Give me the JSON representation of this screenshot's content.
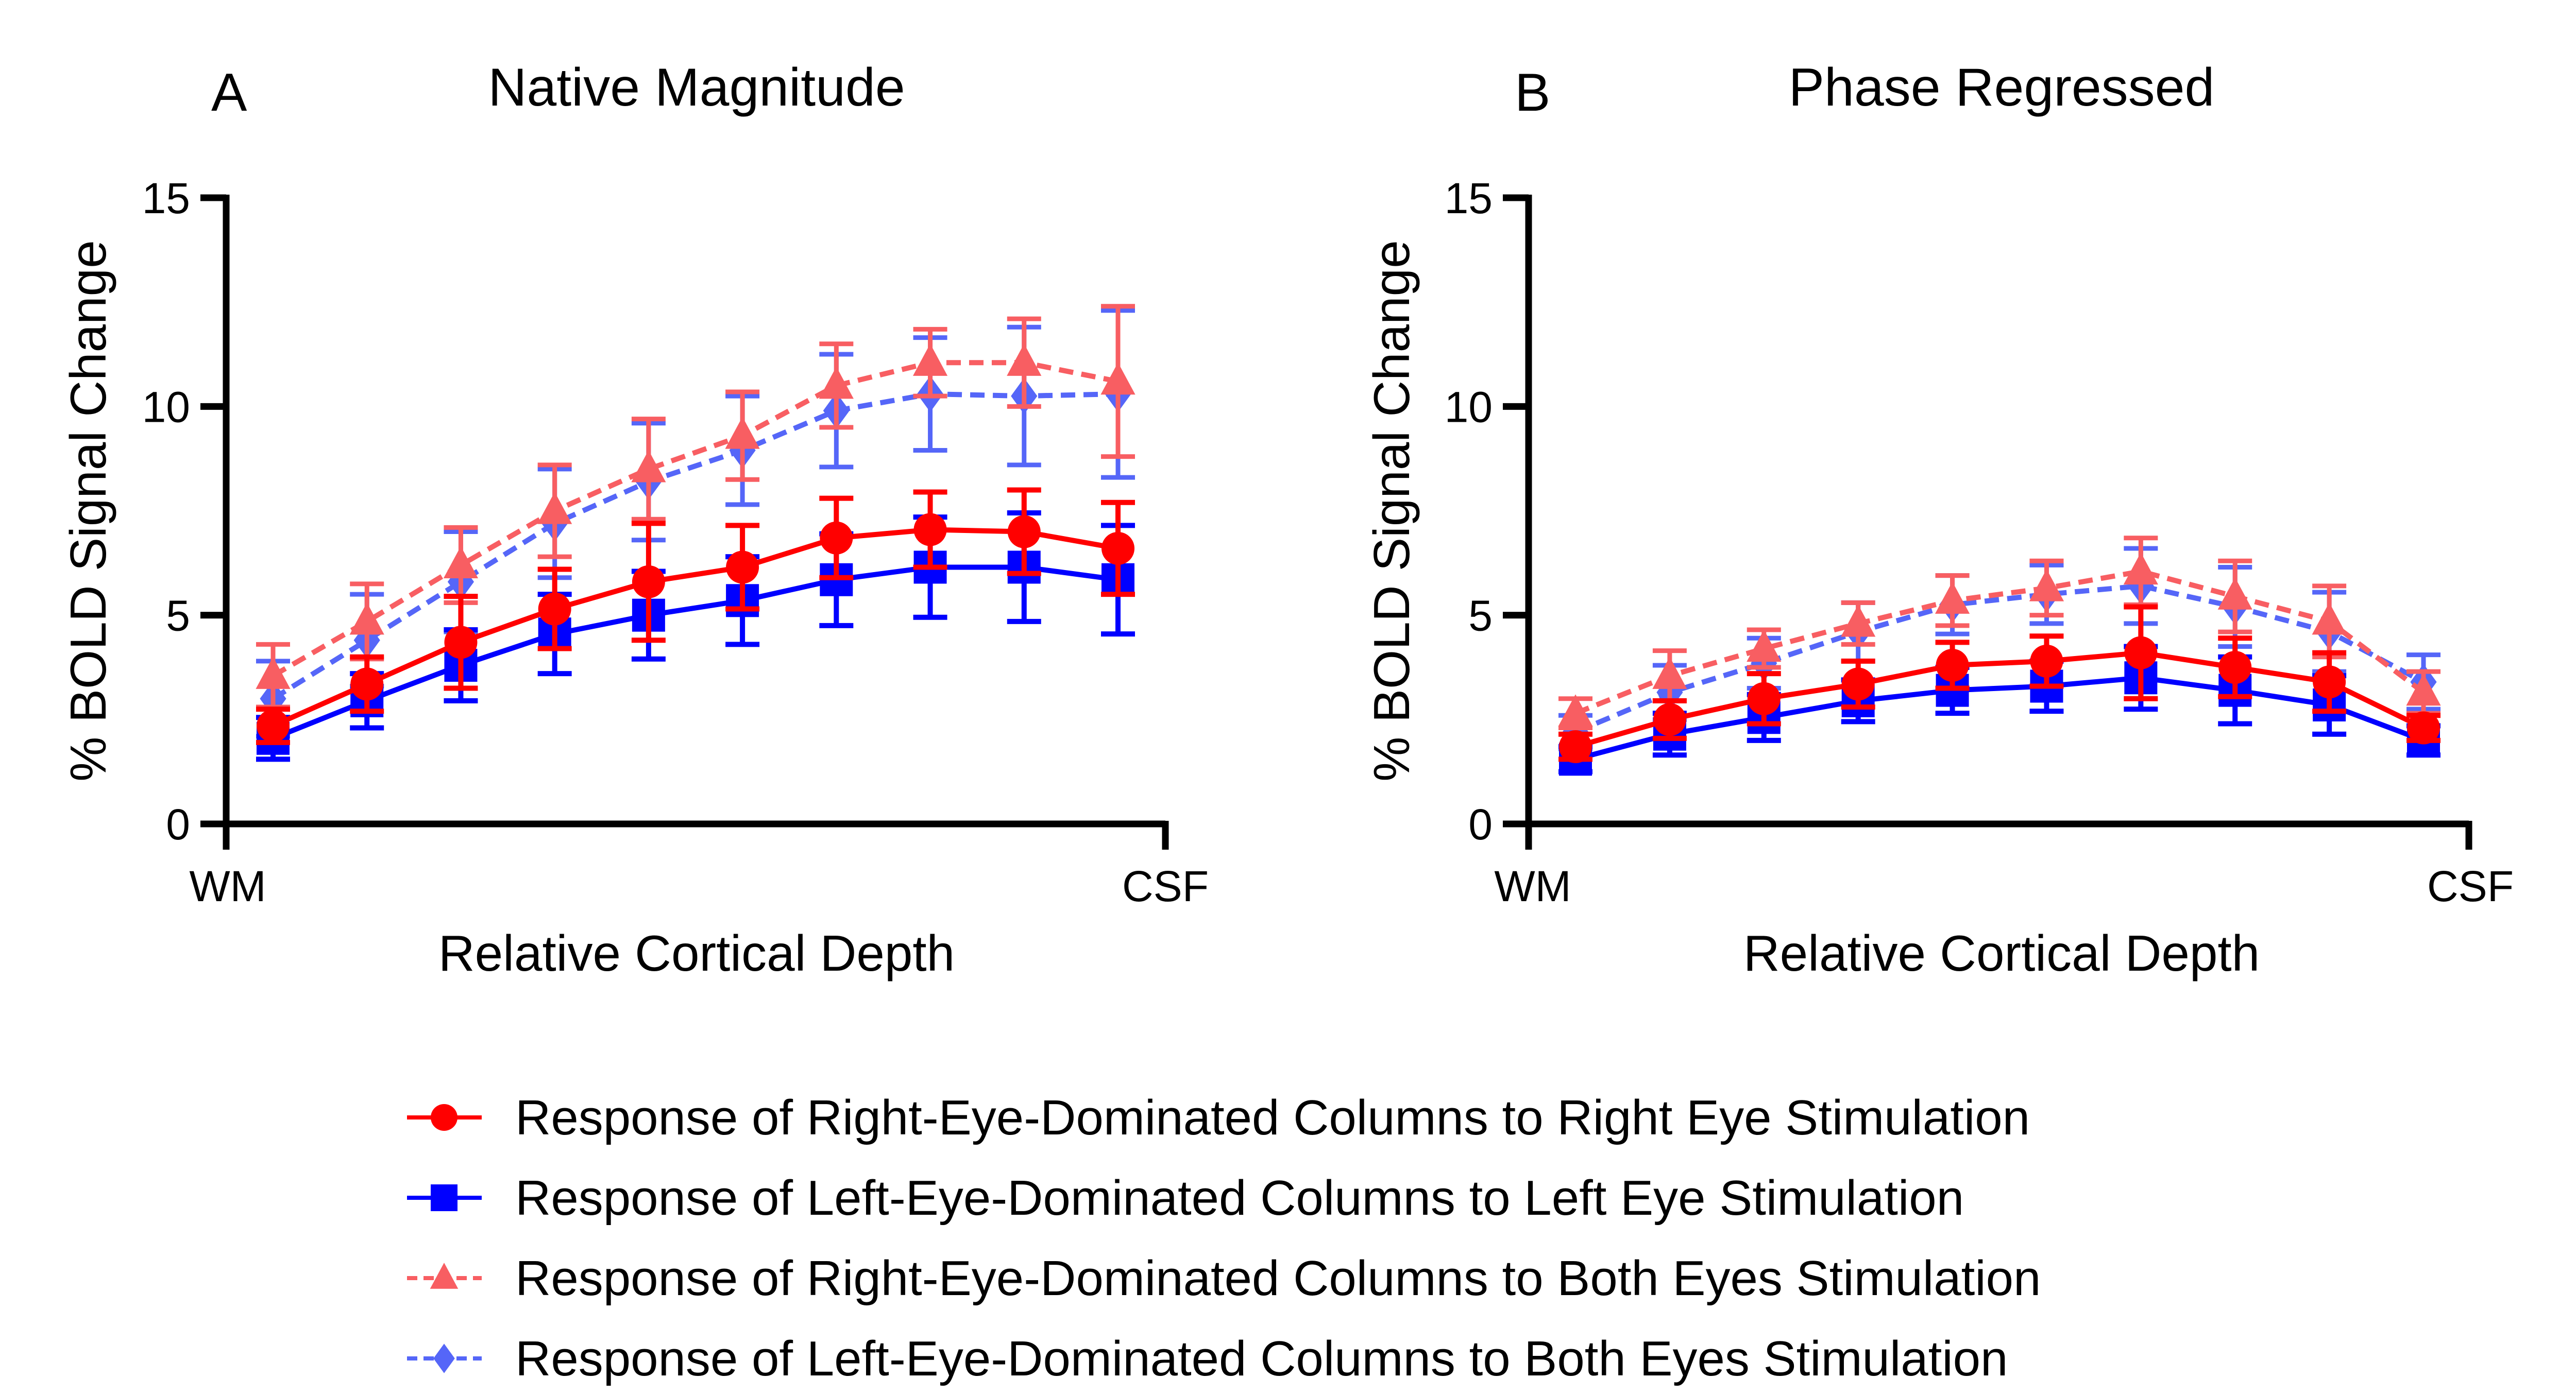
{
  "chart_data": [
    {
      "type": "line",
      "panel_letter": "A",
      "title": "Native Magnitude",
      "xlabel": "Relative Cortical Depth",
      "ylabel": "% BOLD Signal Change",
      "x_tick_labels": [
        "WM",
        "CSF"
      ],
      "yticks": [
        0,
        5,
        10,
        15
      ],
      "ylim": [
        0,
        15
      ],
      "x": [
        1,
        2,
        3,
        4,
        5,
        6,
        7,
        8,
        9,
        10
      ],
      "series": [
        {
          "name": "Response of Right-Eye-Dominated Columns to Right Eye Stimulation",
          "values": [
            2.35,
            3.35,
            4.35,
            5.15,
            5.8,
            6.15,
            6.85,
            7.05,
            7.0,
            6.6
          ],
          "errors": [
            0.4,
            0.65,
            1.1,
            0.95,
            1.4,
            1.0,
            0.95,
            0.9,
            1.0,
            1.1
          ]
        },
        {
          "name": "Response of Left-Eye-Dominated Columns to Left Eye Stimulation",
          "values": [
            2.05,
            2.95,
            3.8,
            4.55,
            5.0,
            5.35,
            5.85,
            6.15,
            6.15,
            5.85
          ],
          "errors": [
            0.5,
            0.65,
            0.85,
            0.95,
            1.05,
            1.05,
            1.1,
            1.2,
            1.3,
            1.3
          ]
        },
        {
          "name": "Response of Right-Eye-Dominated Columns to Both Eyes Stimulation",
          "values": [
            3.55,
            4.85,
            6.2,
            7.5,
            8.5,
            9.3,
            10.5,
            11.05,
            11.05,
            10.6
          ],
          "errors": [
            0.75,
            0.9,
            0.9,
            1.1,
            1.2,
            1.05,
            1.0,
            0.8,
            1.05,
            1.8
          ]
        },
        {
          "name": "Response of Left-Eye-Dominated Columns to Both Eyes Stimulation",
          "values": [
            3.0,
            4.4,
            5.8,
            7.2,
            8.2,
            8.95,
            9.9,
            10.3,
            10.25,
            10.3
          ],
          "errors": [
            0.9,
            1.1,
            1.2,
            1.3,
            1.4,
            1.3,
            1.35,
            1.35,
            1.65,
            2.0
          ]
        }
      ]
    },
    {
      "type": "line",
      "panel_letter": "B",
      "title": "Phase Regressed",
      "xlabel": "Relative Cortical Depth",
      "ylabel": "% BOLD Signal Change",
      "x_tick_labels": [
        "WM",
        "CSF"
      ],
      "yticks": [
        0,
        5,
        10,
        15
      ],
      "ylim": [
        0,
        15
      ],
      "x": [
        1,
        2,
        3,
        4,
        5,
        6,
        7,
        8,
        9,
        10
      ],
      "series": [
        {
          "name": "Response of Right-Eye-Dominated Columns to Right Eye Stimulation",
          "values": [
            1.85,
            2.5,
            3.0,
            3.35,
            3.8,
            3.9,
            4.1,
            3.75,
            3.4,
            2.3
          ],
          "errors": [
            0.3,
            0.45,
            0.6,
            0.55,
            0.55,
            0.6,
            1.1,
            0.7,
            0.7,
            0.3
          ]
        },
        {
          "name": "Response of Left-Eye-Dominated Columns to Left Eye Stimulation",
          "values": [
            1.55,
            2.15,
            2.55,
            2.95,
            3.2,
            3.3,
            3.5,
            3.2,
            2.85,
            2.0
          ],
          "errors": [
            0.3,
            0.5,
            0.55,
            0.5,
            0.55,
            0.6,
            0.75,
            0.8,
            0.7,
            0.35
          ]
        },
        {
          "name": "Response of Right-Eye-Dominated Columns to Both Eyes Stimulation",
          "values": [
            2.65,
            3.55,
            4.2,
            4.8,
            5.35,
            5.65,
            6.05,
            5.45,
            4.85,
            3.15
          ],
          "errors": [
            0.35,
            0.6,
            0.45,
            0.5,
            0.6,
            0.65,
            0.8,
            0.85,
            0.85,
            0.5
          ]
        },
        {
          "name": "Response of Left-Eye-Dominated Columns to Both Eyes Stimulation",
          "values": [
            2.2,
            3.15,
            3.85,
            4.6,
            5.25,
            5.5,
            5.7,
            5.2,
            4.6,
            3.4
          ],
          "errors": [
            0.4,
            0.65,
            0.6,
            0.7,
            0.7,
            0.7,
            0.9,
            0.95,
            0.95,
            0.65
          ]
        }
      ]
    }
  ],
  "legend": {
    "placement": "bottom",
    "entries": [
      {
        "label": "Response of Right-Eye-Dominated Columns to Right Eye Stimulation",
        "color": "#ff0000",
        "marker": "circle",
        "dash": false
      },
      {
        "label": "Response of Left-Eye-Dominated Columns to Left Eye Stimulation",
        "color": "#0000ff",
        "marker": "square",
        "dash": false
      },
      {
        "label": "Response of Right-Eye-Dominated Columns to Both Eyes Stimulation",
        "color": "#f85e62",
        "marker": "triangle",
        "dash": true
      },
      {
        "label": "Response of Left-Eye-Dominated Columns to Both Eyes Stimulation",
        "color": "#5566f8",
        "marker": "diamond",
        "dash": true
      }
    ]
  }
}
